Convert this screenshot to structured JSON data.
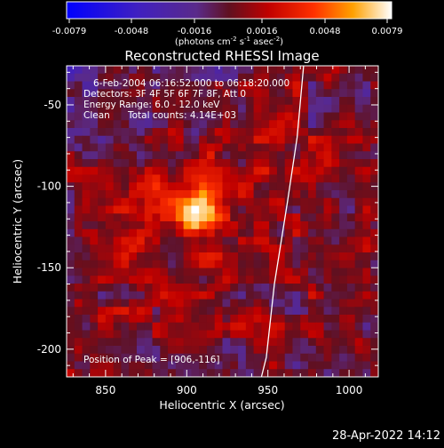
{
  "chart_data": {
    "type": "heatmap",
    "title": "Reconstructed RHESSI Image",
    "xlabel": "Heliocentric X (arcsec)",
    "ylabel": "Heliocentric Y (arcsec)",
    "xlim": [
      826,
      1018
    ],
    "ylim": [
      -217,
      -26
    ],
    "x_ticks": [
      850,
      900,
      950,
      1000
    ],
    "y_ticks": [
      -50,
      -100,
      -150,
      -200
    ],
    "colorbar": {
      "range": [
        -0.0079,
        0.0079
      ],
      "ticks": [
        "-0.0079",
        "-0.0048",
        "-0.0016",
        "0.0016",
        "0.0048",
        "0.0079"
      ],
      "label_main": "(photons cm",
      "label_exp1": "-2",
      "label_mid": " s",
      "label_exp2": "-1",
      "label_mid2": " asec",
      "label_exp3": "-2",
      "label_end": ")"
    },
    "peak": {
      "x": 906,
      "y": -116
    },
    "limb": [
      [
        972,
        -26
      ],
      [
        968,
        -70
      ],
      [
        962,
        -110
      ],
      [
        954,
        -160
      ],
      [
        949,
        -205
      ],
      [
        946,
        -217
      ]
    ]
  },
  "info_lines": {
    "time": "6-Feb-2004 06:16:52.000 to 06:18:20.000",
    "detectors": "Detectors: 3F 4F 5F 6F 7F 8F, Att 0",
    "energy": "Energy Range: 6.0 - 12.0 keV",
    "clean": "Clean",
    "counts": "Total counts: 4.14E+03",
    "peak": "Position of Peak = [906,-116]"
  },
  "footer": {
    "timestamp": "28-Apr-2022 14:12"
  }
}
